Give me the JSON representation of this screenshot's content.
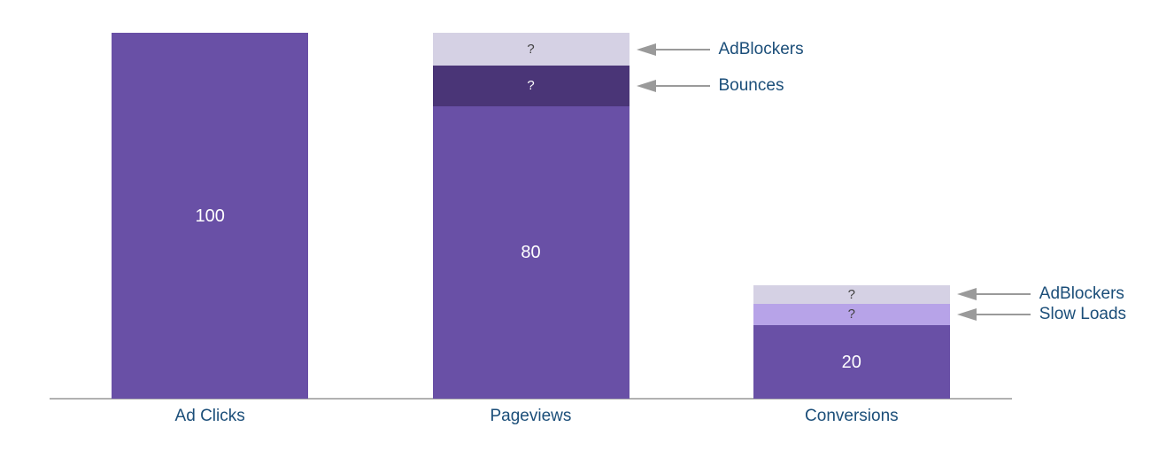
{
  "chart_data": {
    "type": "bar",
    "subtype": "stacked funnel with unknown loss segments",
    "title": "",
    "categories": [
      "Ad Clicks",
      "Pageviews",
      "Conversions"
    ],
    "ylim": [
      0,
      100
    ],
    "grid": false,
    "legend_position": "none",
    "annotation_style": "gray left-pointing arrow from label to bar segment",
    "colors": {
      "main": "#6950a6",
      "dark": "#4a3577",
      "light": "#d5d1e4",
      "medium_light": "#b7a3e8",
      "value_text": "#ffffff",
      "unknown_text": "#404040",
      "label_text": "#1b4e79",
      "arrow": "#9a9a9a",
      "axis_line": "#b1b1b1"
    },
    "bars": [
      {
        "category": "Ad Clicks",
        "segments": [
          {
            "name": "Ad Clicks",
            "label": "100",
            "value": 100,
            "height_units": 100,
            "color_key": "main",
            "text_color": "#ffffff",
            "label_style": "value"
          }
        ]
      },
      {
        "category": "Pageviews",
        "segments": [
          {
            "name": "AdBlockers",
            "label": "?",
            "value": "?",
            "height_units": 9,
            "color_key": "light",
            "text_color": "#404040",
            "label_style": "unknown",
            "annotation": "AdBlockers"
          },
          {
            "name": "Bounces",
            "label": "?",
            "value": "?",
            "height_units": 11,
            "color_key": "dark",
            "text_color": "#ffffff",
            "label_style": "unknown",
            "annotation": "Bounces"
          },
          {
            "name": "Pageviews",
            "label": "80",
            "value": 80,
            "height_units": 80,
            "color_key": "main",
            "text_color": "#ffffff",
            "label_style": "value"
          }
        ]
      },
      {
        "category": "Conversions",
        "segments": [
          {
            "name": "AdBlockers",
            "label": "?",
            "value": "?",
            "height_units": 5,
            "color_key": "light",
            "text_color": "#404040",
            "label_style": "unknown",
            "annotation": "AdBlockers"
          },
          {
            "name": "Slow Loads",
            "label": "?",
            "value": "?",
            "height_units": 6,
            "color_key": "medium_light",
            "text_color": "#404040",
            "label_style": "unknown",
            "annotation": "Slow Loads"
          },
          {
            "name": "Conversions",
            "label": "20",
            "value": 20,
            "height_units": 20,
            "color_key": "main",
            "text_color": "#ffffff",
            "label_style": "value"
          }
        ]
      }
    ]
  }
}
